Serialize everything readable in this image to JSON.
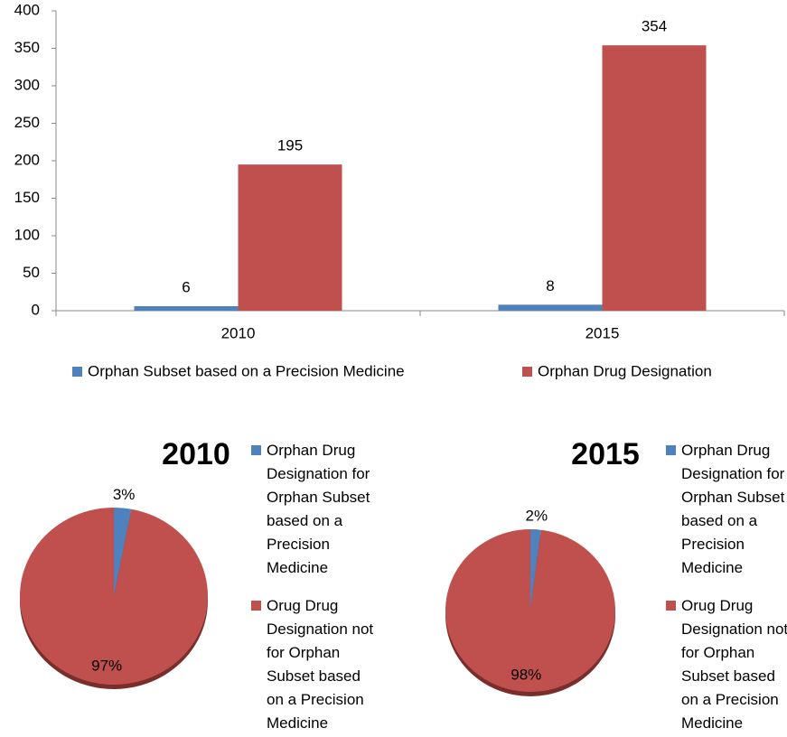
{
  "chart_data": [
    {
      "type": "bar",
      "categories": [
        "2010",
        "2015"
      ],
      "series": [
        {
          "name": "Orphan Subset based on a Precision Medicine",
          "color": "#4f81bd",
          "values": [
            6,
            8
          ]
        },
        {
          "name": "Orphan Drug Designation",
          "color": "#c0504d",
          "values": [
            195,
            354
          ]
        }
      ],
      "ylim": [
        0,
        400
      ],
      "yticks": [
        0,
        50,
        100,
        150,
        200,
        250,
        300,
        350,
        400
      ],
      "grid": false
    },
    {
      "type": "pie",
      "title": "2010",
      "categories": [
        "Orphan Drug Designation for Orphan Subset based on a Precision Medicine",
        "Orug Drug Designation not for Orphan Subset based on a Precision Medicine"
      ],
      "values": [
        3,
        97
      ],
      "value_labels": [
        "3%",
        "97%"
      ],
      "colors": [
        "#4f81bd",
        "#c0504d"
      ]
    },
    {
      "type": "pie",
      "title": "2015",
      "categories": [
        "Orphan Drug Designation for Orphan Subset based on a Precision Medicine",
        "Orug Drug Designation not for Orphan Subset based on a Precision Medicine"
      ],
      "values": [
        2,
        98
      ],
      "value_labels": [
        "2%",
        "98%"
      ],
      "colors": [
        "#4f81bd",
        "#c0504d"
      ]
    }
  ]
}
